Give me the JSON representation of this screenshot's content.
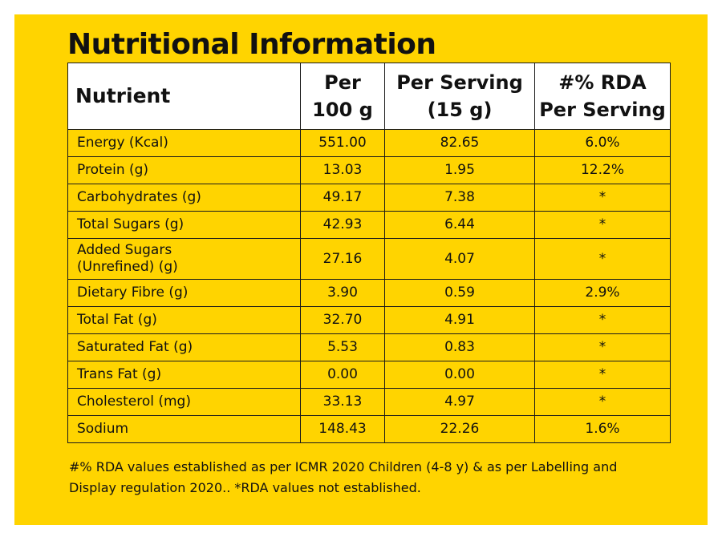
{
  "title": "Nutritional Information",
  "columns": {
    "nutrient": "Nutrient",
    "per100": "Per\n100 g",
    "perServing": "Per Serving\n(15 g)",
    "rda": "#% RDA\nPer Serving"
  },
  "rows": [
    {
      "nutrient": "Energy (Kcal)",
      "per100": "551.00",
      "perServing": "82.65",
      "rda": "6.0%"
    },
    {
      "nutrient": "Protein (g)",
      "per100": "13.03",
      "perServing": "1.95",
      "rda": "12.2%"
    },
    {
      "nutrient": "Carbohydrates (g)",
      "per100": "49.17",
      "perServing": "7.38",
      "rda": "*"
    },
    {
      "nutrient": "Total Sugars (g)",
      "per100": "42.93",
      "perServing": "6.44",
      "rda": "*"
    },
    {
      "nutrient": "Added Sugars\n(Unrefined) (g)",
      "per100": "27.16",
      "perServing": "4.07",
      "rda": "*"
    },
    {
      "nutrient": "Dietary Fibre (g)",
      "per100": "3.90",
      "perServing": "0.59",
      "rda": "2.9%"
    },
    {
      "nutrient": "Total Fat (g)",
      "per100": "32.70",
      "perServing": "4.91",
      "rda": "*"
    },
    {
      "nutrient": "Saturated Fat (g)",
      "per100": "5.53",
      "perServing": "0.83",
      "rda": "*"
    },
    {
      "nutrient": "Trans Fat (g)",
      "per100": "0.00",
      "perServing": "0.00",
      "rda": "*"
    },
    {
      "nutrient": "Cholesterol (mg)",
      "per100": "33.13",
      "perServing": "4.97",
      "rda": "*"
    },
    {
      "nutrient": "Sodium",
      "per100": "148.43",
      "perServing": "22.26",
      "rda": "1.6%"
    }
  ],
  "footnote": "#% RDA values established as per ICMR 2020 Children (4-8 y) & as per Labelling and Display regulation 2020.. *RDA values not established.",
  "colors": {
    "background": "#ffd400",
    "header": "#ffffff",
    "text": "#111111"
  }
}
